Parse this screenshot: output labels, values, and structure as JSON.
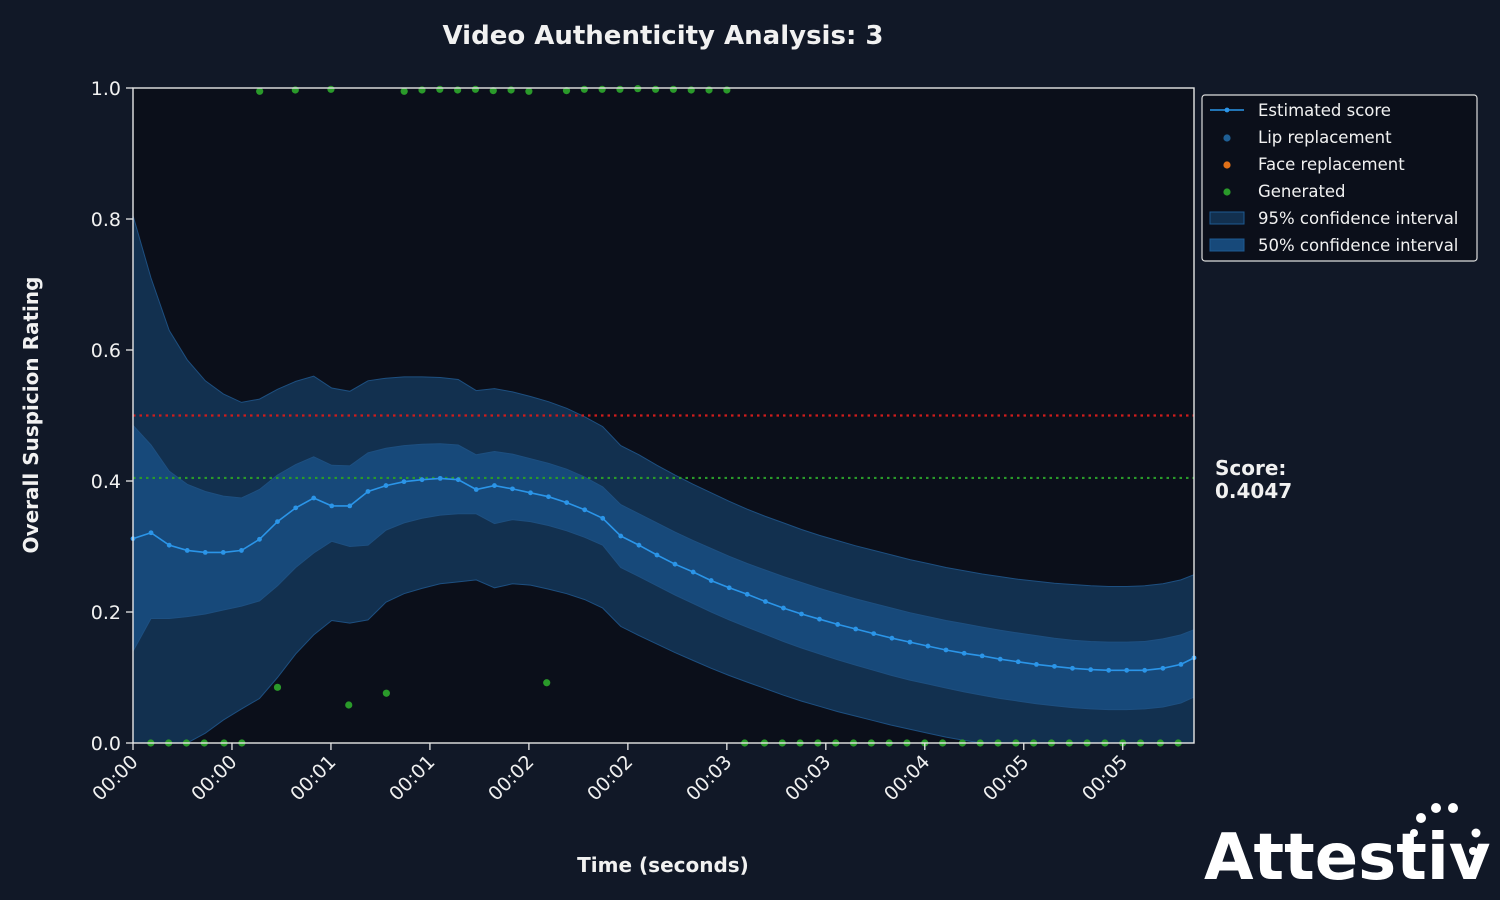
{
  "chart_data": {
    "type": "line",
    "title": "Video Authenticity Analysis: 3",
    "xlabel": "Time (seconds)",
    "ylabel": "Overall Suspicion Rating",
    "x_tick_labels": [
      "00:00",
      "00:00",
      "00:01",
      "00:01",
      "00:02",
      "00:02",
      "00:03",
      "00:03",
      "00:04",
      "00:05",
      "00:05"
    ],
    "x_ticks": [
      0,
      0.5,
      1.0,
      1.5,
      2.0,
      2.5,
      3.0,
      3.5,
      4.0,
      4.5,
      5.0
    ],
    "xlim": [
      0,
      5.36
    ],
    "y_ticks": [
      "0.0",
      "0.2",
      "0.4",
      "0.6",
      "0.8",
      "1.0"
    ],
    "ylim": [
      0,
      1.0
    ],
    "grid": false,
    "legend_position": "upper-right-outside",
    "reference_lines": [
      {
        "name": "threshold",
        "y": 0.5,
        "color": "#d01c1c",
        "style": "dotted"
      },
      {
        "name": "score",
        "y": 0.4047,
        "color": "#2a9a2a",
        "style": "dotted"
      }
    ],
    "score_label": "Score:",
    "score_value": "0.4047",
    "legend": [
      {
        "label": "Estimated score",
        "kind": "line",
        "color": "#2b95e8"
      },
      {
        "label": "Lip replacement",
        "kind": "dot",
        "color": "#1f5f95"
      },
      {
        "label": "Face replacement",
        "kind": "dot",
        "color": "#e07018"
      },
      {
        "label": "Generated",
        "kind": "dot",
        "color": "#2a9a2a"
      },
      {
        "label": "95% confidence interval",
        "kind": "band",
        "color": "#12304f"
      },
      {
        "label": "50% confidence interval",
        "kind": "band",
        "color": "#17497a"
      }
    ],
    "series": [
      {
        "name": "Estimated score",
        "x": [
          0,
          0.091,
          0.183,
          0.274,
          0.365,
          0.456,
          0.548,
          0.639,
          0.73,
          0.822,
          0.913,
          1.004,
          1.095,
          1.187,
          1.278,
          1.369,
          1.46,
          1.552,
          1.643,
          1.734,
          1.826,
          1.917,
          2.008,
          2.099,
          2.191,
          2.282,
          2.373,
          2.464,
          2.556,
          2.647,
          2.738,
          2.83,
          2.921,
          3.012,
          3.103,
          3.195,
          3.286,
          3.377,
          3.468,
          3.56,
          3.651,
          3.742,
          3.834,
          3.925,
          4.016,
          4.107,
          4.199,
          4.29,
          4.381,
          4.472,
          4.564,
          4.655,
          4.746,
          4.838,
          4.929,
          5.02,
          5.111,
          5.203,
          5.294,
          5.36
        ],
        "values": [
          0.312,
          0.321,
          0.302,
          0.294,
          0.291,
          0.291,
          0.294,
          0.311,
          0.338,
          0.359,
          0.374,
          0.362,
          0.362,
          0.384,
          0.393,
          0.399,
          0.402,
          0.404,
          0.402,
          0.387,
          0.393,
          0.388,
          0.382,
          0.376,
          0.367,
          0.356,
          0.343,
          0.316,
          0.302,
          0.287,
          0.273,
          0.261,
          0.248,
          0.237,
          0.227,
          0.216,
          0.206,
          0.197,
          0.189,
          0.181,
          0.174,
          0.167,
          0.16,
          0.154,
          0.148,
          0.142,
          0.137,
          0.133,
          0.128,
          0.124,
          0.12,
          0.117,
          0.114,
          0.112,
          0.111,
          0.111,
          0.111,
          0.114,
          0.12,
          0.13
        ],
        "color": "#2b95e8"
      },
      {
        "name": "95% confidence interval",
        "x": [
          0,
          0.091,
          0.183,
          0.274,
          0.365,
          0.456,
          0.548,
          0.639,
          0.73,
          0.822,
          0.913,
          1.004,
          1.095,
          1.187,
          1.278,
          1.369,
          1.46,
          1.552,
          1.643,
          1.734,
          1.826,
          1.917,
          2.008,
          2.099,
          2.191,
          2.282,
          2.373,
          2.464,
          2.556,
          2.647,
          2.738,
          2.83,
          2.921,
          3.012,
          3.103,
          3.195,
          3.286,
          3.377,
          3.468,
          3.56,
          3.651,
          3.742,
          3.834,
          3.925,
          4.016,
          4.107,
          4.199,
          4.29,
          4.381,
          4.472,
          4.564,
          4.655,
          4.746,
          4.838,
          4.929,
          5.02,
          5.111,
          5.203,
          5.294,
          5.36
        ],
        "upper": [
          0.805,
          0.71,
          0.63,
          0.585,
          0.553,
          0.533,
          0.52,
          0.525,
          0.54,
          0.552,
          0.56,
          0.542,
          0.537,
          0.553,
          0.557,
          0.559,
          0.559,
          0.558,
          0.555,
          0.538,
          0.541,
          0.536,
          0.529,
          0.521,
          0.511,
          0.498,
          0.483,
          0.454,
          0.44,
          0.424,
          0.409,
          0.395,
          0.382,
          0.369,
          0.357,
          0.346,
          0.336,
          0.326,
          0.317,
          0.309,
          0.301,
          0.294,
          0.287,
          0.28,
          0.274,
          0.268,
          0.263,
          0.258,
          0.254,
          0.25,
          0.247,
          0.244,
          0.242,
          0.24,
          0.239,
          0.239,
          0.24,
          0.243,
          0.249,
          0.257
        ],
        "lower": [
          0,
          0,
          0,
          0,
          0.015,
          0.035,
          0.052,
          0.068,
          0.1,
          0.136,
          0.165,
          0.187,
          0.183,
          0.188,
          0.215,
          0.228,
          0.236,
          0.243,
          0.246,
          0.249,
          0.237,
          0.243,
          0.241,
          0.235,
          0.228,
          0.219,
          0.206,
          0.178,
          0.164,
          0.151,
          0.138,
          0.126,
          0.114,
          0.103,
          0.093,
          0.083,
          0.073,
          0.064,
          0.056,
          0.048,
          0.041,
          0.034,
          0.027,
          0.021,
          0.015,
          0.009,
          0.004,
          0,
          0,
          0,
          0,
          0,
          0,
          0,
          0,
          0,
          0,
          0,
          0,
          0
        ],
        "color": "#12304f"
      },
      {
        "name": "50% confidence interval",
        "x": [
          0,
          0.091,
          0.183,
          0.274,
          0.365,
          0.456,
          0.548,
          0.639,
          0.73,
          0.822,
          0.913,
          1.004,
          1.095,
          1.187,
          1.278,
          1.369,
          1.46,
          1.552,
          1.643,
          1.734,
          1.826,
          1.917,
          2.008,
          2.099,
          2.191,
          2.282,
          2.373,
          2.464,
          2.556,
          2.647,
          2.738,
          2.83,
          2.921,
          3.012,
          3.103,
          3.195,
          3.286,
          3.377,
          3.468,
          3.56,
          3.651,
          3.742,
          3.834,
          3.925,
          4.016,
          4.107,
          4.199,
          4.29,
          4.381,
          4.472,
          4.564,
          4.655,
          4.746,
          4.838,
          4.929,
          5.02,
          5.111,
          5.203,
          5.294,
          5.36
        ],
        "upper": [
          0.485,
          0.455,
          0.415,
          0.395,
          0.384,
          0.377,
          0.374,
          0.387,
          0.409,
          0.425,
          0.437,
          0.424,
          0.423,
          0.443,
          0.45,
          0.454,
          0.456,
          0.457,
          0.455,
          0.44,
          0.445,
          0.441,
          0.434,
          0.427,
          0.418,
          0.406,
          0.391,
          0.364,
          0.35,
          0.336,
          0.322,
          0.309,
          0.297,
          0.285,
          0.274,
          0.264,
          0.254,
          0.245,
          0.236,
          0.228,
          0.22,
          0.213,
          0.206,
          0.199,
          0.193,
          0.187,
          0.182,
          0.177,
          0.172,
          0.168,
          0.164,
          0.16,
          0.157,
          0.155,
          0.154,
          0.154,
          0.155,
          0.159,
          0.165,
          0.173
        ],
        "lower": [
          0.14,
          0.19,
          0.19,
          0.193,
          0.197,
          0.203,
          0.209,
          0.217,
          0.24,
          0.268,
          0.29,
          0.308,
          0.3,
          0.302,
          0.325,
          0.336,
          0.343,
          0.348,
          0.35,
          0.35,
          0.335,
          0.341,
          0.338,
          0.332,
          0.324,
          0.314,
          0.302,
          0.268,
          0.254,
          0.24,
          0.226,
          0.213,
          0.2,
          0.188,
          0.177,
          0.166,
          0.155,
          0.145,
          0.136,
          0.127,
          0.119,
          0.111,
          0.103,
          0.096,
          0.09,
          0.084,
          0.078,
          0.073,
          0.068,
          0.064,
          0.06,
          0.057,
          0.054,
          0.052,
          0.051,
          0.051,
          0.052,
          0.055,
          0.061,
          0.07
        ],
        "color": "#17497a"
      },
      {
        "name": "Generated",
        "type": "scatter",
        "color": "#2a9a2a",
        "x": [
          0.09,
          0.18,
          0.27,
          0.36,
          0.46,
          0.55,
          0.64,
          0.73,
          0.82,
          1.0,
          1.09,
          1.28,
          1.37,
          1.46,
          1.55,
          1.64,
          1.73,
          1.82,
          1.91,
          2.0,
          2.09,
          2.19,
          2.28,
          2.37,
          2.46,
          2.55,
          2.64,
          2.73,
          2.82,
          2.91,
          3.0,
          3.09,
          3.19,
          3.28,
          3.37,
          3.46,
          3.55,
          3.64,
          3.73,
          3.82,
          3.91,
          4.0,
          4.09,
          4.19,
          4.28,
          4.37,
          4.46,
          4.55,
          4.64,
          4.73,
          4.82,
          4.91,
          5.0,
          5.09,
          5.19,
          5.28
        ],
        "y": [
          0,
          0,
          0,
          0,
          0,
          0,
          0.995,
          0.085,
          0.997,
          0.998,
          0.058,
          0.076,
          0.995,
          0.997,
          0.998,
          0.997,
          0.998,
          0.996,
          0.997,
          0.995,
          0.092,
          0.996,
          0.998,
          0.998,
          0.998,
          0.999,
          0.998,
          0.998,
          0.997,
          0.997,
          0.997,
          0,
          0,
          0,
          0,
          0,
          0,
          0,
          0,
          0,
          0,
          0,
          0,
          0,
          0,
          0,
          0,
          0,
          0,
          0,
          0,
          0,
          0,
          0,
          0,
          0
        ]
      }
    ]
  },
  "brand": {
    "logo_text": "Attestiv"
  }
}
